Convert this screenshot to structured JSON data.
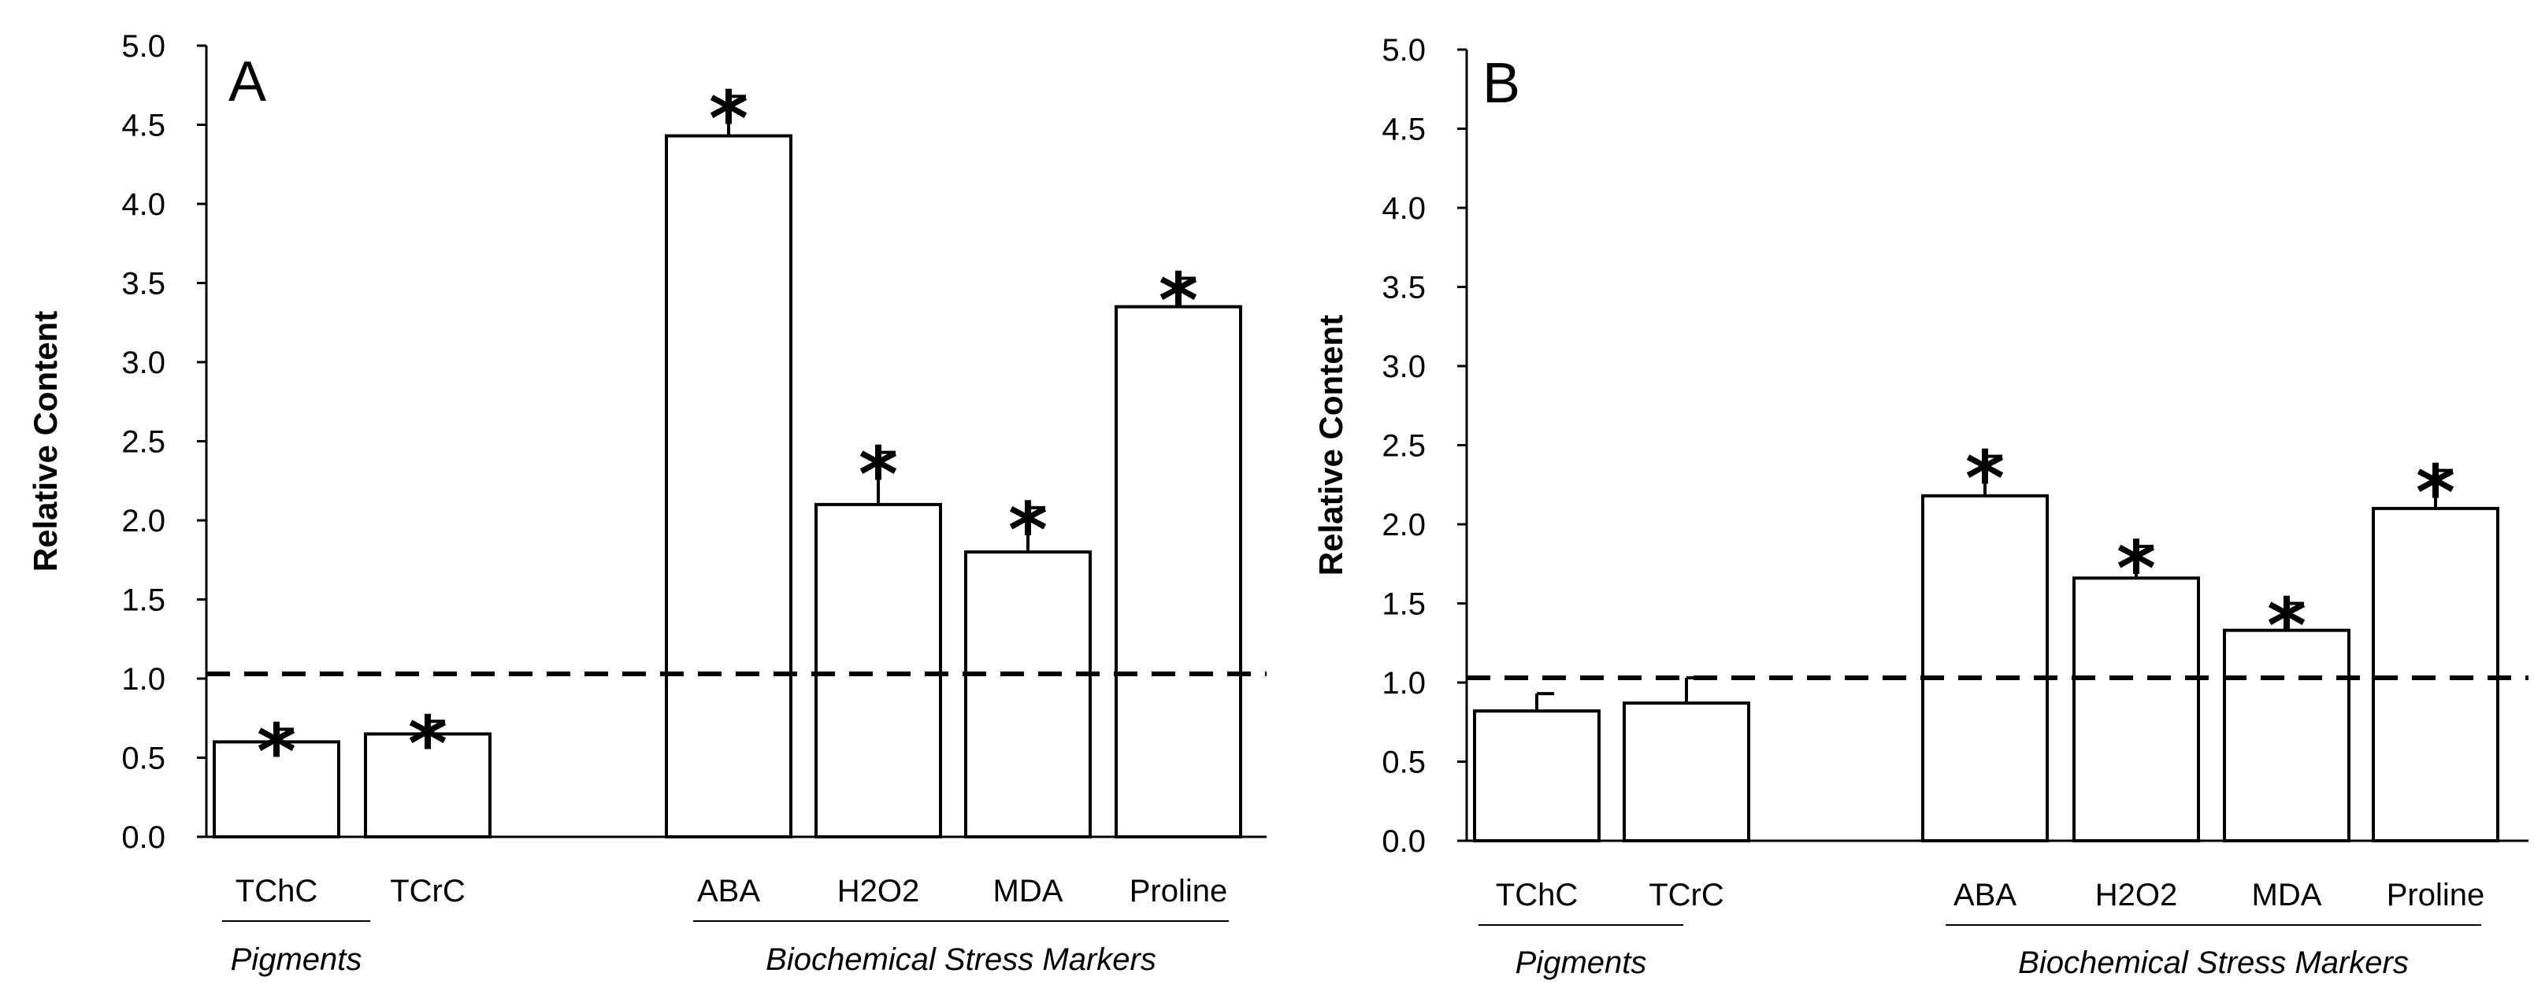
{
  "chart_data": [
    {
      "type": "bar",
      "panel_label": "A",
      "ylabel": "Relative Content",
      "ylim": [
        0,
        5
      ],
      "yticks": [
        "0.0",
        "0.5",
        "1.0",
        "1.5",
        "2.0",
        "2.5",
        "3.0",
        "3.5",
        "4.0",
        "4.5",
        "5.0"
      ],
      "categories": [
        "TChC",
        "TCrC",
        "ABA",
        "H2O2",
        "MDA",
        "Proline"
      ],
      "values": [
        0.6,
        0.65,
        4.43,
        2.1,
        1.8,
        3.35
      ],
      "errors": [
        0.08,
        0.08,
        0.25,
        0.33,
        0.28,
        0.18
      ],
      "significant": [
        true,
        true,
        true,
        true,
        true,
        true
      ],
      "marker": "*",
      "reference_line": 1.03,
      "groups": [
        {
          "label": "Pigments",
          "categories": [
            "TChC",
            "TCrC"
          ]
        },
        {
          "label": "Biochemical Stress Markers",
          "categories": [
            "ABA",
            "H2O2",
            "MDA",
            "Proline"
          ]
        }
      ]
    },
    {
      "type": "bar",
      "panel_label": "B",
      "ylabel": "Relative Content",
      "ylim": [
        0,
        5
      ],
      "yticks": [
        "0.0",
        "0.5",
        "1.0",
        "1.5",
        "2.0",
        "2.5",
        "3.0",
        "3.5",
        "4.0",
        "4.5",
        "5.0"
      ],
      "categories": [
        "TChC",
        "TCrC",
        "ABA",
        "H2O2",
        "MDA",
        "Proline"
      ],
      "values": [
        0.82,
        0.87,
        2.18,
        1.66,
        1.33,
        2.1
      ],
      "errors": [
        0.11,
        0.16,
        0.25,
        0.2,
        0.17,
        0.24
      ],
      "significant": [
        false,
        false,
        true,
        true,
        true,
        true
      ],
      "marker": "*",
      "reference_line": 1.03,
      "groups": [
        {
          "label": "Pigments",
          "categories": [
            "TChC",
            "TCrC"
          ]
        },
        {
          "label": "Biochemical Stress Markers",
          "categories": [
            "ABA",
            "H2O2",
            "MDA",
            "Proline"
          ]
        }
      ]
    }
  ]
}
